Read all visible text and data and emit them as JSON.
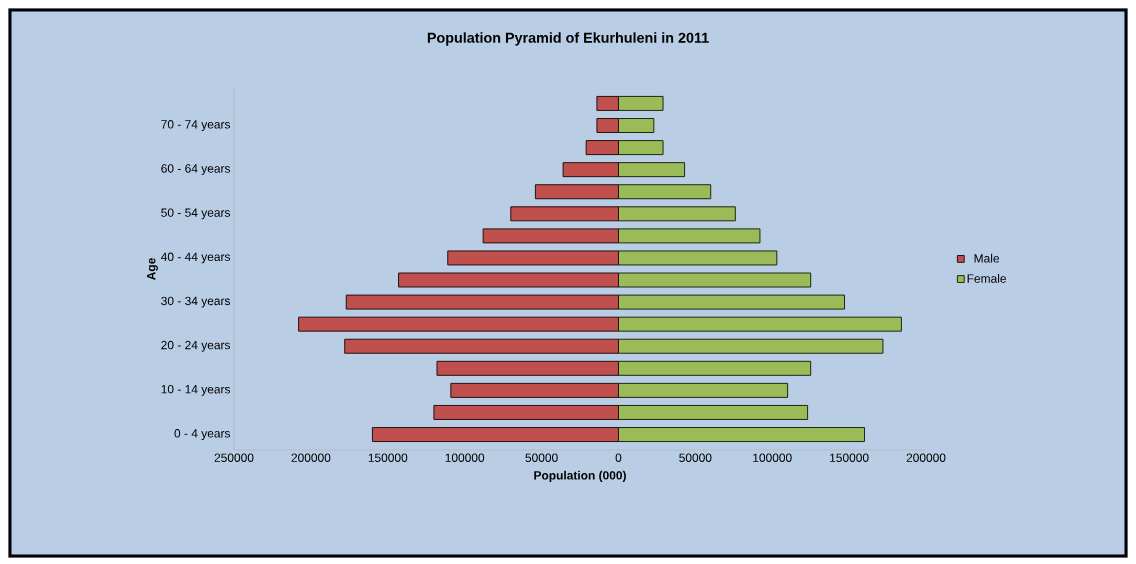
{
  "chart_data": {
    "type": "bar",
    "orientation": "horizontal",
    "title": "Population Pyramid of Ekurhuleni in 2011",
    "xlabel": "Population (000)",
    "ylabel": "Age",
    "categories": [
      null,
      "70 - 74 years",
      null,
      "60 - 64 years",
      null,
      "50 - 54 years",
      null,
      "40 - 44 years",
      null,
      "30 - 34 years",
      null,
      "20 - 24 years",
      null,
      "10 - 14 years",
      null,
      "0 - 4 years"
    ],
    "series": [
      {
        "name": "Male",
        "color": "#c0504d",
        "values": [
          -14000,
          -14000,
          -21000,
          -36000,
          -54000,
          -70000,
          -88000,
          -111000,
          -143000,
          -177000,
          -208000,
          -178000,
          -118000,
          -109000,
          -120000,
          -160000
        ]
      },
      {
        "name": "Female",
        "color": "#9bbb59",
        "values": [
          29000,
          23000,
          29000,
          43000,
          60000,
          76000,
          92000,
          103000,
          125000,
          147000,
          184000,
          172000,
          125000,
          110000,
          123000,
          160000
        ]
      }
    ],
    "xlim": [
      -250000,
      200000
    ],
    "xticks": [
      {
        "value": -250000,
        "label": "250000"
      },
      {
        "value": -200000,
        "label": "200000"
      },
      {
        "value": -150000,
        "label": "150000"
      },
      {
        "value": -100000,
        "label": "100000"
      },
      {
        "value": -50000,
        "label": "50000"
      },
      0,
      50000,
      100000,
      150000,
      200000
    ],
    "stacked": true,
    "legend": "right"
  }
}
